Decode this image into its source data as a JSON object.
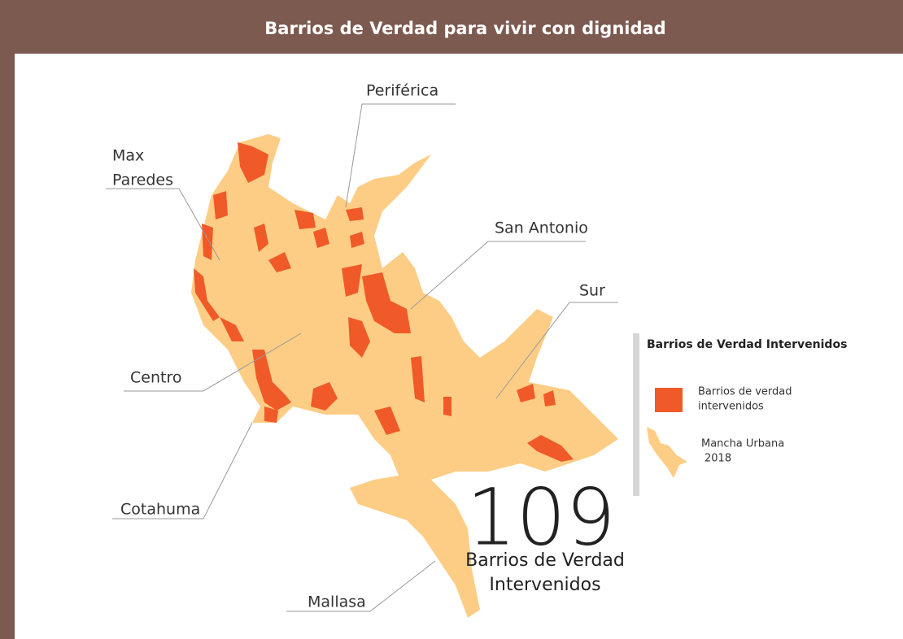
{
  "header": {
    "title": "Barrios de Verdad para vivir con dignidad"
  },
  "map": {
    "labels": [
      {
        "lines": [
          "Periférica"
        ]
      },
      {
        "lines": [
          "Max",
          "Paredes"
        ]
      },
      {
        "lines": [
          "San Antonio"
        ]
      },
      {
        "lines": [
          "Sur"
        ]
      },
      {
        "lines": [
          "Centro"
        ]
      },
      {
        "lines": [
          "Cotahuma"
        ]
      },
      {
        "lines": [
          "Mallasa"
        ]
      }
    ]
  },
  "legend": {
    "title": "Barrios de Verdad Intervenidos",
    "items": [
      {
        "lines": [
          "Barrios de verdad",
          "intervenidos"
        ]
      },
      {
        "lines": [
          "Mancha Urbana",
          "2018"
        ]
      }
    ]
  },
  "highlight": {
    "number": "109",
    "caption": [
      "Barrios de Verdad",
      "Intervenidos"
    ]
  }
}
